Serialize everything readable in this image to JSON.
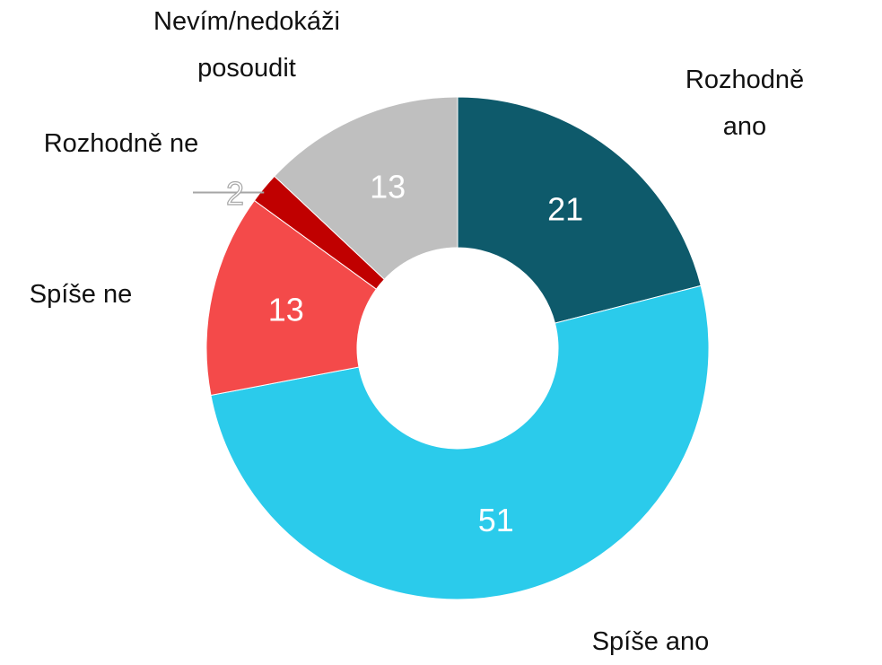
{
  "chart_data": {
    "type": "donut",
    "categories": [
      "Rozhodně ano",
      "Spíše ano",
      "Spíše ne",
      "Rozhodně ne",
      "Nevím/nedokáži\nposoudit"
    ],
    "values": [
      21,
      51,
      13,
      2,
      13
    ],
    "colors": [
      "#0e5a6b",
      "#2bcbeb",
      "#f44a4a",
      "#c00000",
      "#bfbfbf"
    ]
  }
}
